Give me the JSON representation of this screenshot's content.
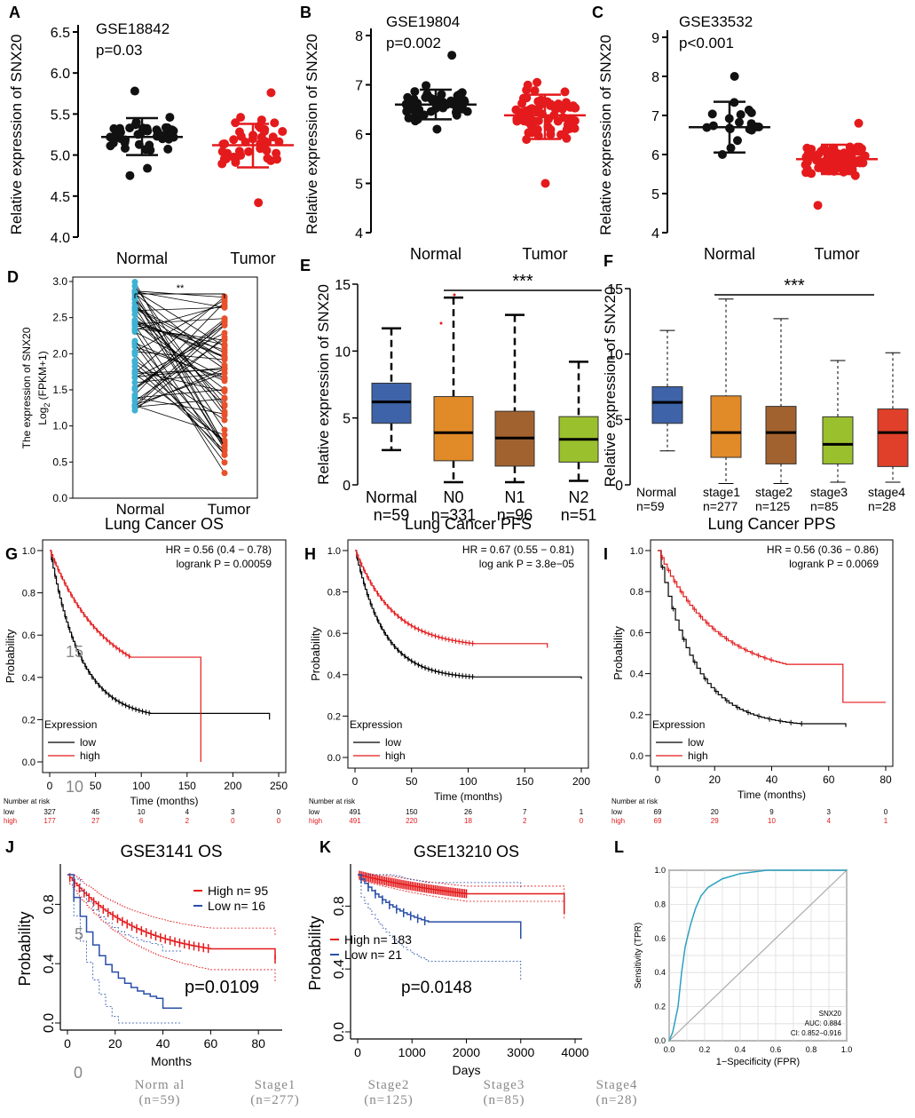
{
  "colors": {
    "normal_dot": "#111111",
    "tumor_dot": "#e41a1c",
    "paired_normal": "#3fb1d3",
    "paired_tumor": "#e8512b",
    "box_normal": "#3e63a8",
    "box_n0": "#e08a28",
    "box_n1": "#a2622f",
    "box_n2": "#9bc02e",
    "box_stage4": "#e0402a",
    "km_low": "#000000",
    "km_high": "#e41a1c",
    "km_geo_low": "#2a4fa8",
    "roc": "#2aa1c0"
  },
  "chart_data": [
    {
      "panel": "A",
      "type": "scatter",
      "title": "GSE18842",
      "pvalue": "p=0.03",
      "ylabel": "Relative expression of SNX20",
      "ylim": [
        4.0,
        6.5
      ],
      "yticks": [
        "4.0",
        "4.5",
        "5.0",
        "5.5",
        "6.0",
        "6.5"
      ],
      "categories": [
        "Normal",
        "Tumor"
      ],
      "groups": [
        {
          "name": "Normal",
          "mean": 5.22,
          "sd_low": 5.0,
          "sd_high": 5.45,
          "min": 4.75,
          "max": 5.78
        },
        {
          "name": "Tumor",
          "mean": 5.12,
          "sd_low": 4.85,
          "sd_high": 5.38,
          "min": 4.42,
          "max": 5.76
        }
      ]
    },
    {
      "panel": "B",
      "type": "scatter",
      "title": "GSE19804",
      "pvalue": "p=0.002",
      "ylabel": "Relative expression of SNX20",
      "ylim": [
        4,
        8
      ],
      "yticks": [
        "4",
        "5",
        "6",
        "7",
        "8"
      ],
      "categories": [
        "Normal",
        "Tumor"
      ],
      "groups": [
        {
          "name": "Normal",
          "mean": 6.6,
          "sd_low": 6.3,
          "sd_high": 6.9,
          "min": 6.1,
          "max": 7.6
        },
        {
          "name": "Tumor",
          "mean": 6.38,
          "sd_low": 5.9,
          "sd_high": 6.8,
          "min": 5.0,
          "max": 7.05
        }
      ]
    },
    {
      "panel": "C",
      "type": "scatter",
      "title": "GSE33532",
      "pvalue": "p<0.001",
      "ylabel": "Relative expression of SNX20",
      "ylim": [
        4,
        9
      ],
      "yticks": [
        "4",
        "5",
        "6",
        "7",
        "8",
        "9"
      ],
      "categories": [
        "Normal",
        "Tumor"
      ],
      "groups": [
        {
          "name": "Normal",
          "mean": 6.7,
          "sd_low": 6.05,
          "sd_high": 7.35,
          "min": 6.0,
          "max": 8.0
        },
        {
          "name": "Tumor",
          "mean": 5.88,
          "sd_low": 5.5,
          "sd_high": 6.25,
          "min": 4.7,
          "max": 6.8
        }
      ]
    },
    {
      "panel": "D",
      "type": "paired",
      "ylabel": "The expression of SNX20",
      "ylabel2": "Log",
      "ylabel2_sub": "2",
      "ylabel2_tail": " (FPKM+1)",
      "ylim": [
        0,
        3.0
      ],
      "yticks": [
        "0.0",
        "0.5",
        "1.0",
        "1.5",
        "2.0",
        "2.5",
        "3.0"
      ],
      "categories": [
        "Normal",
        "Tumor"
      ],
      "significance": "**",
      "normal_range": [
        1.2,
        3.0
      ],
      "tumor_range": [
        0.2,
        2.8
      ]
    },
    {
      "panel": "E",
      "type": "box",
      "ylabel": "Relative expression of SNX20",
      "ylim": [
        0,
        15
      ],
      "yticks": [
        "0",
        "5",
        "10",
        "15"
      ],
      "significance": "***",
      "boxes": [
        {
          "label": "Normal",
          "n": "n=59",
          "min": 2.6,
          "q1": 4.6,
          "median": 6.2,
          "q3": 7.6,
          "max": 11.7
        },
        {
          "label": "N0",
          "n": "n=331",
          "min": 0.2,
          "q1": 1.8,
          "median": 3.9,
          "q3": 6.6,
          "max": 14.0
        },
        {
          "label": "N1",
          "n": "n=96",
          "min": 0.2,
          "q1": 1.4,
          "median": 3.5,
          "q3": 5.5,
          "max": 12.7
        },
        {
          "label": "N2",
          "n": "n=51",
          "min": 0.3,
          "q1": 1.7,
          "median": 3.4,
          "q3": 5.1,
          "max": 9.2
        }
      ]
    },
    {
      "panel": "F",
      "type": "box",
      "ylabel": "Relative expression of SNX20",
      "ylim": [
        0,
        15
      ],
      "yticks": [
        "0",
        "5",
        "10",
        "15"
      ],
      "significance": "***",
      "boxes": [
        {
          "label": "Normal",
          "n": "n=59",
          "min": 2.6,
          "q1": 4.7,
          "median": 6.3,
          "q3": 7.5,
          "max": 11.8
        },
        {
          "label": "stage1",
          "n": "n=277",
          "min": 0.1,
          "q1": 2.1,
          "median": 4.0,
          "q3": 6.8,
          "max": 14.2
        },
        {
          "label": "stage2",
          "n": "n=125",
          "min": 0.1,
          "q1": 1.6,
          "median": 4.0,
          "q3": 6.0,
          "max": 12.7
        },
        {
          "label": "stage3",
          "n": "n=85",
          "min": 0.2,
          "q1": 1.6,
          "median": 3.1,
          "q3": 5.2,
          "max": 9.5
        },
        {
          "label": "stage4",
          "n": "n=28",
          "min": 0.2,
          "q1": 1.4,
          "median": 4.0,
          "q3": 5.8,
          "max": 10.1
        }
      ]
    },
    {
      "panel": "G",
      "type": "line",
      "title": "Lung Cancer OS",
      "hr": "HR = 0.56 (0.4 − 0.78)",
      "logrank": "logrank P = 0.00059",
      "xlabel": "Time (months)",
      "ylabel": "Probability",
      "xticks": [
        "0",
        "50",
        "100",
        "150",
        "200",
        "250"
      ],
      "yticks": [
        "0.0",
        "0.2",
        "0.4",
        "0.6",
        "0.8",
        "1.0"
      ],
      "legend_title": "Expression",
      "legend": [
        "low",
        "high"
      ],
      "risk_title": "Number at risk",
      "risk": {
        "low": [
          "327",
          "45",
          "10",
          "4",
          "3",
          "0"
        ],
        "high": [
          "177",
          "27",
          "6",
          "2",
          "0",
          "0"
        ]
      }
    },
    {
      "panel": "H",
      "type": "line",
      "title": "Lung Cancer PFS",
      "hr": "HR = 0.67 (0.55 − 0.81)",
      "logrank": "log ank P = 3.8e−05",
      "xlabel": "Time (months)",
      "ylabel": "Probability",
      "xticks": [
        "0",
        "50",
        "100",
        "150",
        "200"
      ],
      "yticks": [
        "0.0",
        "0.2",
        "0.4",
        "0.6",
        "0.8",
        "1.0"
      ],
      "legend_title": "Expression",
      "legend": [
        "low",
        "high"
      ],
      "risk_title": "Number at risk",
      "risk": {
        "low": [
          "491",
          "150",
          "26",
          "7",
          "1"
        ],
        "high": [
          "491",
          "220",
          "18",
          "2",
          "0"
        ]
      }
    },
    {
      "panel": "I",
      "type": "line",
      "title": "Lung Cancer PPS",
      "hr": "HR = 0.56 (0.36 − 0.86)",
      "logrank": "logrank P = 0.0069",
      "xlabel": "Time (months)",
      "ylabel": "Probability",
      "xticks": [
        "0",
        "20",
        "40",
        "60",
        "80"
      ],
      "yticks": [
        "0.0",
        "0.2",
        "0.4",
        "0.6",
        "0.8",
        "1.0"
      ],
      "legend_title": "Expression",
      "legend": [
        "low",
        "high"
      ],
      "risk_title": "Number at risk",
      "risk": {
        "low": [
          "69",
          "20",
          "9",
          "3",
          "0"
        ],
        "high": [
          "69",
          "29",
          "10",
          "4",
          "1"
        ]
      }
    },
    {
      "panel": "J",
      "type": "line",
      "title": "GSE3141 OS",
      "xlabel": "Months",
      "ylabel": "Probability",
      "xticks": [
        "0",
        "20",
        "40",
        "60",
        "80"
      ],
      "yticks": [
        "0.0",
        "0.4",
        "0.8"
      ],
      "legend": [
        "High  n= 95",
        "Low   n= 16"
      ],
      "pvalue": "p=0.0109"
    },
    {
      "panel": "K",
      "type": "line",
      "title": "GSE13210 OS",
      "xlabel": "Days",
      "ylabel": "Probability",
      "xticks": [
        "0",
        "1000",
        "2000",
        "3000",
        "4000"
      ],
      "yticks": [
        "0.0",
        "0.4",
        "0.8"
      ],
      "legend": [
        "High  n= 183",
        "Low   n= 21"
      ],
      "pvalue": "p=0.0148"
    },
    {
      "panel": "L",
      "type": "line",
      "xlabel": "1−Specificity (FPR)",
      "ylabel": "Sensitivity (TPR)",
      "xticks": [
        "0.0",
        "0.2",
        "0.4",
        "0.6",
        "0.8",
        "1.0"
      ],
      "yticks": [
        "0.0",
        "0.2",
        "0.4",
        "0.6",
        "0.8",
        "1.0"
      ],
      "legend": [
        "SNX20",
        "AUC: 0.884",
        "CI: 0.852−0.916"
      ]
    }
  ],
  "panel_letters": [
    "A",
    "B",
    "C",
    "D",
    "E",
    "F",
    "G",
    "H",
    "I",
    "J",
    "K",
    "L"
  ],
  "overlay": {
    "g_15": "15",
    "g_10": "10",
    "j_5": "5",
    "j_0": "0"
  },
  "ghost": [
    {
      "l": "Norm al",
      "n": "(n=59)"
    },
    {
      "l": "Stage1",
      "n": "(n=277)"
    },
    {
      "l": "Stage2",
      "n": "(n=125)"
    },
    {
      "l": "Stage3",
      "n": "(n=85)"
    },
    {
      "l": "Stage4",
      "n": "(n=28)"
    }
  ]
}
